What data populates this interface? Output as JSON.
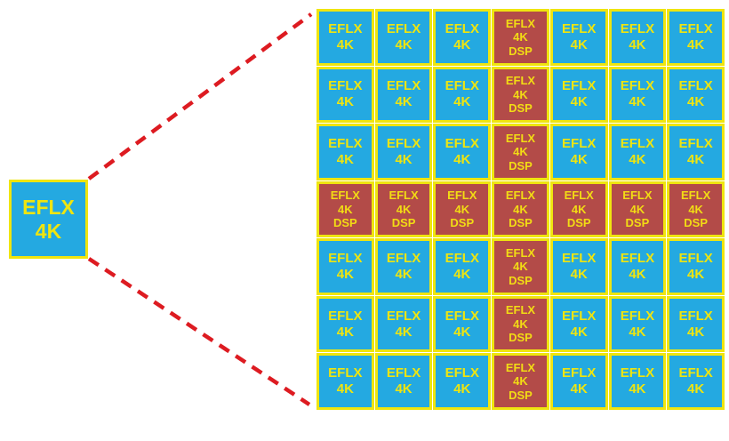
{
  "colors": {
    "background": "#FFFFFF",
    "logic_fill": "#24A9E1",
    "dsp_fill": "#B34B48",
    "border_yellow": "#EFE50F",
    "label_yellow": "#EFE50F",
    "dsp_label_yellow": "#F2DC14",
    "connector_red": "#DD1B21"
  },
  "source_tile": {
    "lines": [
      "EFLX",
      "4K"
    ]
  },
  "array": {
    "rows": 7,
    "cols": 7,
    "labels": {
      "logic": [
        "EFLX",
        "4K"
      ],
      "dsp": [
        "EFLX",
        "4K",
        "DSP"
      ]
    },
    "cells": [
      [
        "logic",
        "logic",
        "logic",
        "dsp",
        "logic",
        "logic",
        "logic"
      ],
      [
        "logic",
        "logic",
        "logic",
        "dsp",
        "logic",
        "logic",
        "logic"
      ],
      [
        "logic",
        "logic",
        "logic",
        "dsp",
        "logic",
        "logic",
        "logic"
      ],
      [
        "dsp",
        "dsp",
        "dsp",
        "dsp",
        "dsp",
        "dsp",
        "dsp"
      ],
      [
        "logic",
        "logic",
        "logic",
        "dsp",
        "logic",
        "logic",
        "logic"
      ],
      [
        "logic",
        "logic",
        "logic",
        "dsp",
        "logic",
        "logic",
        "logic"
      ],
      [
        "logic",
        "logic",
        "logic",
        "dsp",
        "logic",
        "logic",
        "logic"
      ]
    ]
  }
}
